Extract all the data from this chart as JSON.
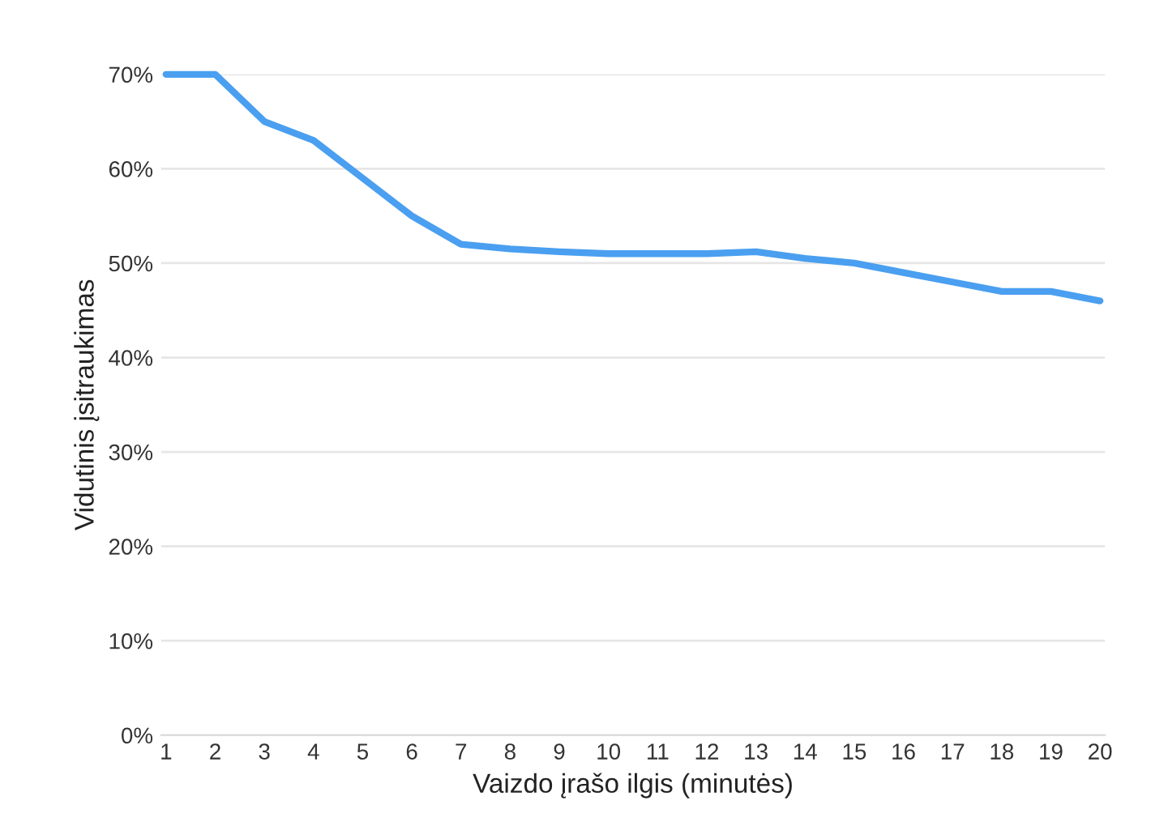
{
  "chart_data": {
    "type": "line",
    "xlabel": "Vaizdo įrašo ilgis (minutės)",
    "ylabel": "Vidutinis įsitraukimas",
    "categories": [
      "1",
      "2",
      "3",
      "4",
      "5",
      "6",
      "7",
      "8",
      "9",
      "10",
      "11",
      "12",
      "13",
      "14",
      "15",
      "16",
      "17",
      "18",
      "19",
      "20"
    ],
    "series": [
      {
        "color": "#4a9ff0",
        "values": [
          70,
          70,
          65,
          63,
          59,
          55,
          52,
          51.5,
          51.2,
          51,
          51,
          51,
          51.2,
          50.5,
          50,
          49,
          48,
          47,
          47,
          46
        ]
      }
    ],
    "ylim": [
      0,
      70
    ],
    "yticks": [
      {
        "value": 0,
        "label": "0%"
      },
      {
        "value": 10,
        "label": "10%"
      },
      {
        "value": 20,
        "label": "20%"
      },
      {
        "value": 30,
        "label": "30%"
      },
      {
        "value": 40,
        "label": "40%"
      },
      {
        "value": 50,
        "label": "50%"
      },
      {
        "value": 60,
        "label": "60%"
      },
      {
        "value": 70,
        "label": "70%"
      }
    ],
    "grid": "y",
    "line_style": "solid",
    "marker": "none"
  }
}
